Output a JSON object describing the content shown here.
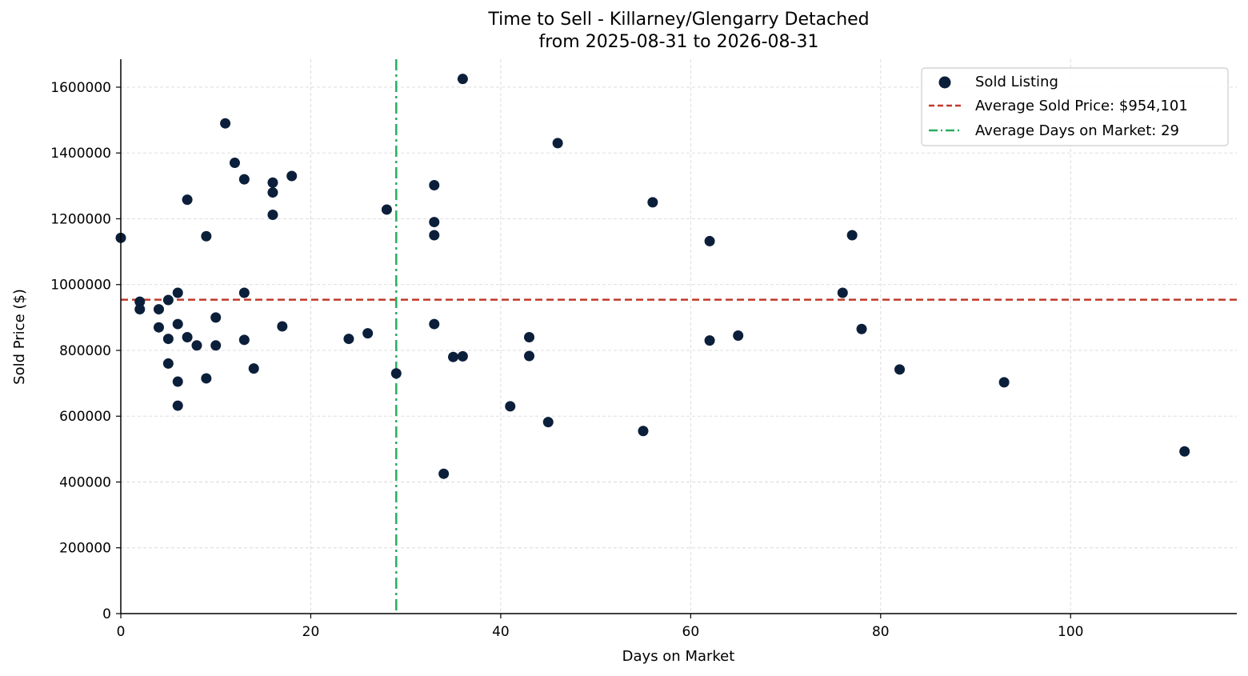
{
  "chart_data": {
    "type": "scatter",
    "title": "Time to Sell - Killarney/Glengarry Detached",
    "subtitle": "from 2025-08-31 to 2026-08-31",
    "xlabel": "Days on Market",
    "ylabel": "Sold Price ($)",
    "xlim": [
      0,
      117.5
    ],
    "ylim": [
      0,
      1685000
    ],
    "x_ticks": [
      0,
      20,
      40,
      60,
      80,
      100
    ],
    "y_ticks": [
      0,
      200000,
      400000,
      600000,
      800000,
      1000000,
      1200000,
      1400000,
      1600000
    ],
    "grid": true,
    "legend_position": "top-right",
    "colors": {
      "points": "#0b1f3a",
      "avg_price": "#c0392b",
      "avg_days": "#27ae60"
    },
    "series": [
      {
        "name": "Sold Listing",
        "points": [
          [
            0,
            1142000
          ],
          [
            2,
            948000
          ],
          [
            2,
            925000
          ],
          [
            4,
            925000
          ],
          [
            4,
            870000
          ],
          [
            5,
            953000
          ],
          [
            5,
            835000
          ],
          [
            5,
            760000
          ],
          [
            6,
            975000
          ],
          [
            6,
            880000
          ],
          [
            6,
            705000
          ],
          [
            6,
            632000
          ],
          [
            7,
            1258000
          ],
          [
            7,
            840000
          ],
          [
            8,
            815000
          ],
          [
            9,
            1147000
          ],
          [
            9,
            715000
          ],
          [
            10,
            900000
          ],
          [
            10,
            815000
          ],
          [
            11,
            1490000
          ],
          [
            12,
            1370000
          ],
          [
            13,
            1320000
          ],
          [
            13,
            975000
          ],
          [
            13,
            832000
          ],
          [
            14,
            745000
          ],
          [
            16,
            1310000
          ],
          [
            16,
            1280000
          ],
          [
            16,
            1212000
          ],
          [
            17,
            873000
          ],
          [
            18,
            1330000
          ],
          [
            24,
            835000
          ],
          [
            26,
            852000
          ],
          [
            28,
            1228000
          ],
          [
            29,
            730000
          ],
          [
            33,
            1302000
          ],
          [
            33,
            1190000
          ],
          [
            33,
            1150000
          ],
          [
            33,
            880000
          ],
          [
            34,
            425000
          ],
          [
            35,
            780000
          ],
          [
            36,
            1625000
          ],
          [
            36,
            782000
          ],
          [
            41,
            630000
          ],
          [
            43,
            840000
          ],
          [
            43,
            783000
          ],
          [
            45,
            582000
          ],
          [
            46,
            1430000
          ],
          [
            55,
            555000
          ],
          [
            56,
            1250000
          ],
          [
            62,
            1132000
          ],
          [
            62,
            830000
          ],
          [
            65,
            845000
          ],
          [
            76,
            975000
          ],
          [
            77,
            1150000
          ],
          [
            78,
            865000
          ],
          [
            82,
            742000
          ],
          [
            93,
            703000
          ],
          [
            112,
            493000
          ]
        ]
      }
    ],
    "reference_lines": [
      {
        "name": "Average Sold Price: $954,101",
        "orientation": "horizontal",
        "value": 954101,
        "style": "dashed"
      },
      {
        "name": "Average Days on Market: 29",
        "orientation": "vertical",
        "value": 29,
        "style": "dashdot"
      }
    ]
  }
}
